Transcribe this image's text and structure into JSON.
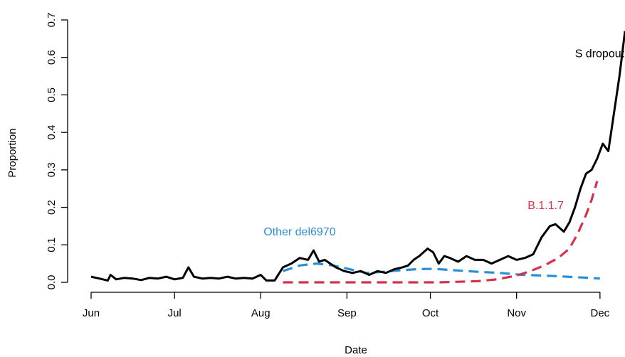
{
  "chart_data": {
    "type": "line",
    "title": "",
    "xlabel": "Date",
    "ylabel": "Proportion",
    "xlim": [
      "2020-06-01",
      "2020-12-10"
    ],
    "ylim": [
      0,
      0.7
    ],
    "x_ticks": [
      {
        "date": "2020-06-01",
        "label": "Jun"
      },
      {
        "date": "2020-07-01",
        "label": "Jul"
      },
      {
        "date": "2020-08-01",
        "label": "Aug"
      },
      {
        "date": "2020-09-01",
        "label": "Sep"
      },
      {
        "date": "2020-10-01",
        "label": "Oct"
      },
      {
        "date": "2020-11-01",
        "label": "Nov"
      },
      {
        "date": "2020-12-01",
        "label": "Dec"
      }
    ],
    "y_ticks": [
      "0.0",
      "0.1",
      "0.2",
      "0.3",
      "0.4",
      "0.5",
      "0.6",
      "0.7"
    ],
    "y_tick_values": [
      0,
      0.1,
      0.2,
      0.3,
      0.4,
      0.5,
      0.6,
      0.7
    ],
    "grid": false,
    "series": [
      {
        "name": "S dropout",
        "color": "#000000",
        "style": "solid",
        "x": [
          "2020-06-01",
          "2020-06-04",
          "2020-06-07",
          "2020-06-08",
          "2020-06-10",
          "2020-06-13",
          "2020-06-16",
          "2020-06-19",
          "2020-06-22",
          "2020-06-25",
          "2020-06-28",
          "2020-07-01",
          "2020-07-04",
          "2020-07-06",
          "2020-07-08",
          "2020-07-11",
          "2020-07-14",
          "2020-07-17",
          "2020-07-20",
          "2020-07-23",
          "2020-07-26",
          "2020-07-29",
          "2020-08-01",
          "2020-08-03",
          "2020-08-06",
          "2020-08-09",
          "2020-08-12",
          "2020-08-15",
          "2020-08-18",
          "2020-08-20",
          "2020-08-22",
          "2020-08-24",
          "2020-08-26",
          "2020-08-28",
          "2020-08-31",
          "2020-09-03",
          "2020-09-06",
          "2020-09-09",
          "2020-09-12",
          "2020-09-15",
          "2020-09-18",
          "2020-09-21",
          "2020-09-23",
          "2020-09-25",
          "2020-09-27",
          "2020-09-30",
          "2020-10-02",
          "2020-10-04",
          "2020-10-06",
          "2020-10-08",
          "2020-10-11",
          "2020-10-14",
          "2020-10-17",
          "2020-10-20",
          "2020-10-23",
          "2020-10-26",
          "2020-10-29",
          "2020-11-01",
          "2020-11-04",
          "2020-11-07",
          "2020-11-10",
          "2020-11-13",
          "2020-11-15",
          "2020-11-18",
          "2020-11-20",
          "2020-11-22",
          "2020-11-24",
          "2020-11-26",
          "2020-11-28",
          "2020-11-30",
          "2020-12-02",
          "2020-12-04",
          "2020-12-06",
          "2020-12-08",
          "2020-12-10"
        ],
        "values": [
          0.015,
          0.01,
          0.005,
          0.02,
          0.008,
          0.012,
          0.01,
          0.006,
          0.012,
          0.01,
          0.015,
          0.008,
          0.012,
          0.04,
          0.015,
          0.01,
          0.012,
          0.01,
          0.015,
          0.01,
          0.012,
          0.01,
          0.02,
          0.005,
          0.005,
          0.04,
          0.05,
          0.065,
          0.06,
          0.085,
          0.055,
          0.06,
          0.05,
          0.04,
          0.03,
          0.025,
          0.03,
          0.02,
          0.03,
          0.025,
          0.035,
          0.04,
          0.045,
          0.06,
          0.07,
          0.09,
          0.08,
          0.05,
          0.07,
          0.065,
          0.055,
          0.07,
          0.06,
          0.06,
          0.05,
          0.06,
          0.07,
          0.06,
          0.065,
          0.075,
          0.12,
          0.15,
          0.155,
          0.135,
          0.16,
          0.2,
          0.25,
          0.29,
          0.3,
          0.33,
          0.37,
          0.35,
          0.45,
          0.55,
          0.67
        ]
      },
      {
        "name": "Other del6970",
        "color": "#2a8fd8",
        "style": "dashed",
        "x": [
          "2020-08-09",
          "2020-08-15",
          "2020-08-21",
          "2020-08-27",
          "2020-09-02",
          "2020-09-08",
          "2020-09-14",
          "2020-09-20",
          "2020-09-26",
          "2020-10-02",
          "2020-10-10",
          "2020-10-18",
          "2020-10-26",
          "2020-11-03",
          "2020-11-11",
          "2020-11-19",
          "2020-11-27",
          "2020-12-01"
        ],
        "values": [
          0.03,
          0.045,
          0.05,
          0.045,
          0.035,
          0.025,
          0.028,
          0.032,
          0.035,
          0.036,
          0.032,
          0.028,
          0.025,
          0.02,
          0.018,
          0.015,
          0.012,
          0.01
        ]
      },
      {
        "name": "B.1.1.7",
        "color": "#d8304a",
        "style": "dashed",
        "x": [
          "2020-08-09",
          "2020-08-23",
          "2020-09-06",
          "2020-09-20",
          "2020-10-04",
          "2020-10-18",
          "2020-10-25",
          "2020-11-01",
          "2020-11-06",
          "2020-11-11",
          "2020-11-16",
          "2020-11-20",
          "2020-11-23",
          "2020-11-26",
          "2020-11-28",
          "2020-11-30"
        ],
        "values": [
          0.0,
          0.0,
          0.0,
          0.0,
          0.0,
          0.003,
          0.008,
          0.018,
          0.03,
          0.045,
          0.065,
          0.09,
          0.13,
          0.18,
          0.22,
          0.27
        ]
      }
    ],
    "annotations": [
      {
        "text": "S dropout",
        "color": "#000000",
        "x": "2020-11-22",
        "y": 0.6
      },
      {
        "text": "B.1.1.7",
        "color": "#d8304a",
        "x": "2020-11-05",
        "y": 0.195
      },
      {
        "text": "Other del6970",
        "color": "#2a8fd8",
        "x": "2020-08-02",
        "y": 0.125
      }
    ]
  }
}
